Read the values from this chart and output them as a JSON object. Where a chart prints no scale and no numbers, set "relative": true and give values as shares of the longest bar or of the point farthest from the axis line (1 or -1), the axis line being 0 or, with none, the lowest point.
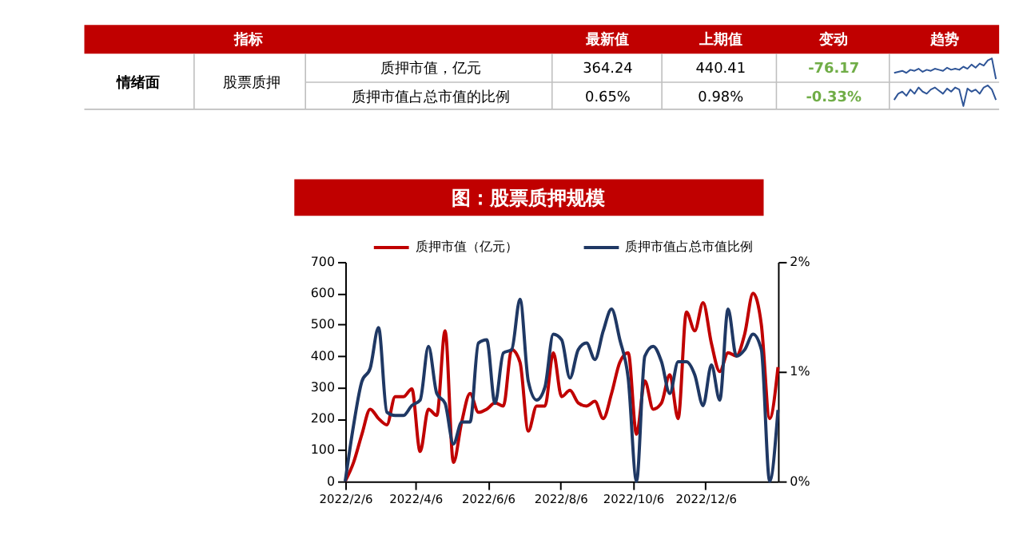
{
  "chart_data": [
    {
      "type": "other",
      "color": "#c00000",
      "categories": [
        "指标",
        "最新值",
        "上期值",
        "变动",
        "趋势"
      ],
      "annotations": [
        "情绪面",
        "股票质押",
        "质押市值，亿元",
        "364.24",
        "440.41",
        "-76.17",
        "质押市值占总市值的比例",
        "0.65%",
        "0.98%",
        "-0.33%"
      ]
    },
    {
      "type": "line",
      "relative": true,
      "color": "#2f5597",
      "values": [
        0.3,
        0.35,
        0.4,
        0.3,
        0.45,
        0.4,
        0.5,
        0.35,
        0.45,
        0.4,
        0.5,
        0.45,
        0.4,
        0.55,
        0.45,
        0.5,
        0.45,
        0.6,
        0.5,
        0.7,
        0.55,
        0.75,
        0.65,
        0.9,
        1,
        0
      ]
    },
    {
      "type": "line",
      "relative": true,
      "color": "#2f5597",
      "values": [
        0.3,
        0.6,
        0.7,
        0.5,
        0.8,
        0.6,
        0.9,
        0.7,
        0.6,
        0.8,
        0.9,
        0.75,
        0.6,
        0.85,
        0.7,
        0.9,
        0.8,
        0,
        0.85,
        0.7,
        0.8,
        0.6,
        0.9,
        1,
        0.8,
        0.3
      ]
    },
    {
      "type": "line",
      "title": "图：股票质押规模",
      "legend": "top",
      "grid": false,
      "x": [
        "2022-02-06",
        "2022-02-13",
        "2022-02-20",
        "2022-02-27",
        "2022-03-06",
        "2022-03-13",
        "2022-03-20",
        "2022-03-27",
        "2022-04-03",
        "2022-04-10",
        "2022-04-17",
        "2022-04-24",
        "2022-05-01",
        "2022-05-08",
        "2022-05-15",
        "2022-05-22",
        "2022-05-29",
        "2022-06-05",
        "2022-06-12",
        "2022-06-19",
        "2022-06-26",
        "2022-07-03",
        "2022-07-10",
        "2022-07-17",
        "2022-07-24",
        "2022-07-31",
        "2022-08-07",
        "2022-08-14",
        "2022-08-21",
        "2022-08-28",
        "2022-09-04",
        "2022-09-11",
        "2022-09-18",
        "2022-09-25",
        "2022-10-02",
        "2022-10-09",
        "2022-10-16",
        "2022-10-23",
        "2022-10-30",
        "2022-11-06",
        "2022-11-13",
        "2022-11-20",
        "2022-11-27",
        "2022-12-04",
        "2022-12-11",
        "2022-12-18",
        "2022-12-25",
        "2023-01-01",
        "2023-01-08",
        "2023-01-15",
        "2023-01-22",
        "2023-01-29",
        "2023-02-05"
      ],
      "xlim": [
        "2022-02-06",
        "2023-02-05"
      ],
      "xticks": [
        {
          "value": "2022-02-06",
          "label": "2022/2/6"
        },
        {
          "value": "2022-04-06",
          "label": "2022/4/6"
        },
        {
          "value": "2022-06-06",
          "label": "2022/6/6"
        },
        {
          "value": "2022-08-06",
          "label": "2022/8/6"
        },
        {
          "value": "2022-10-06",
          "label": "2022/10/6"
        },
        {
          "value": "2022-12-06",
          "label": "2022/12/6"
        }
      ],
      "ylim": [
        0,
        700
      ],
      "yticks": [
        0,
        100,
        200,
        300,
        400,
        500,
        600,
        700
      ],
      "y2lim": [
        0,
        2
      ],
      "y2ticks": [
        {
          "value": 0,
          "label": "0%"
        },
        {
          "value": 1,
          "label": "1%"
        },
        {
          "value": 2,
          "label": "2%"
        }
      ],
      "series": [
        {
          "name": "质押市值（亿元）",
          "color": "#c00000",
          "values": [
            0,
            60,
            150,
            230,
            200,
            180,
            270,
            270,
            295,
            95,
            230,
            210,
            480,
            60,
            190,
            280,
            220,
            230,
            250,
            240,
            420,
            380,
            160,
            240,
            240,
            410,
            270,
            290,
            250,
            240,
            255,
            200,
            280,
            380,
            410,
            150,
            320,
            230,
            250,
            340,
            200,
            540,
            480,
            570,
            440,
            350,
            410,
            400,
            470,
            600,
            500,
            200,
            364
          ]
        },
        {
          "name": "质押市值占总市值比例",
          "color": "#1f3864",
          "axis": "y2",
          "values": [
            0,
            0.51,
            0.91,
            1.03,
            1.4,
            0.63,
            0.6,
            0.6,
            0.69,
            0.74,
            1.23,
            0.8,
            0.71,
            0.34,
            0.54,
            0.54,
            1.26,
            1.29,
            0.71,
            1.17,
            1.2,
            1.66,
            0.91,
            0.74,
            0.86,
            1.34,
            1.29,
            0.94,
            1.2,
            1.26,
            1.11,
            1.37,
            1.57,
            1.29,
            0.94,
            0,
            1.14,
            1.23,
            1.09,
            0.8,
            1.09,
            1.09,
            0.97,
            0.69,
            1.06,
            0.74,
            1.57,
            1.14,
            1.2,
            1.34,
            1.2,
            0,
            0.65
          ]
        }
      ]
    }
  ]
}
